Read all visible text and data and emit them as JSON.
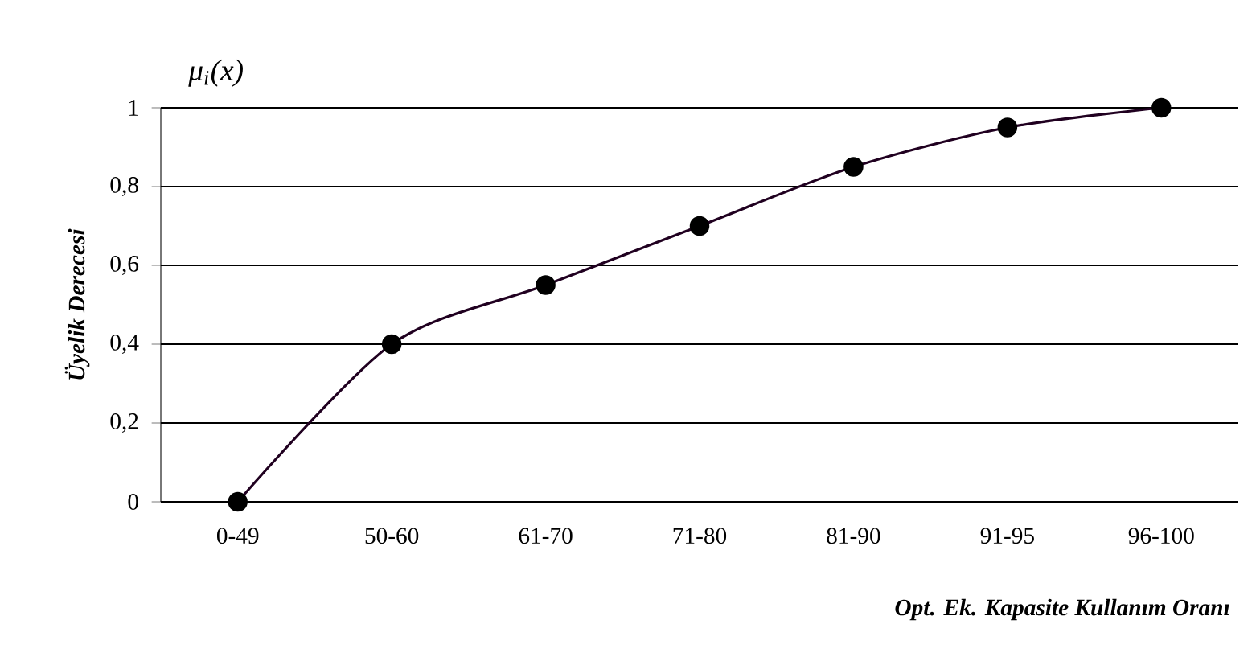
{
  "chart_data": {
    "type": "line",
    "annotations": [
      "μ$_{i}$(x)"
    ],
    "xlabel": "Opt. Ek. Kapasite Kullanım Oranı",
    "ylabel": "Üyelik Derecesi",
    "categories": [
      "0-49",
      "50-60",
      "61-70",
      "71-80",
      "81-90",
      "91-95",
      "96-100"
    ],
    "series": [
      {
        "color": "#200020",
        "values": [
          0,
          0.4,
          0.55,
          0.7,
          0.85,
          0.95,
          1
        ]
      }
    ],
    "ylim": [
      0,
      1
    ],
    "yticks": [
      {
        "value": 0,
        "label": "0"
      },
      {
        "value": 0.2,
        "label": "0,2"
      },
      {
        "value": 0.4,
        "label": "0,4"
      },
      {
        "value": 0.6,
        "label": "0,6"
      },
      {
        "value": 0.8,
        "label": "0,8"
      },
      {
        "value": 1,
        "label": "1"
      }
    ],
    "grid": "y",
    "marker": "circle",
    "line_style": "solid"
  }
}
